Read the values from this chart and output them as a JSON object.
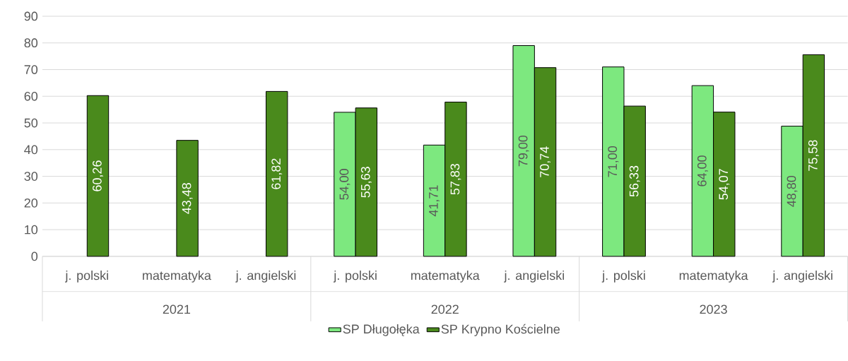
{
  "chart_data": {
    "type": "bar",
    "categories": [
      "j. polski",
      "matematyka",
      "j. angielski",
      "j. polski",
      "matematyka",
      "j. angielski",
      "j. polski",
      "matematyka",
      "j. angielski"
    ],
    "series": [
      {
        "name": "SP Długołęka",
        "color": "#7de87f",
        "values": [
          null,
          null,
          null,
          54.0,
          41.71,
          79.0,
          71.0,
          64.0,
          48.8
        ],
        "value_labels": [
          null,
          null,
          null,
          "54,00",
          "41,71",
          "79,00",
          "71,00",
          "64,00",
          "48,80"
        ]
      },
      {
        "name": "SP Krypno Kościelne",
        "color": "#4a8a1c",
        "values": [
          60.26,
          43.48,
          61.82,
          55.63,
          57.83,
          70.74,
          56.33,
          54.07,
          75.58
        ],
        "value_labels": [
          "60,26",
          "43,48",
          "61,82",
          "55,63",
          "57,83",
          "70,74",
          "56,33",
          "54,07",
          "75,58"
        ]
      }
    ],
    "annotations": [
      "2021",
      "2022",
      "2023"
    ],
    "ylim": [
      0,
      90
    ],
    "yticks": [
      0,
      10,
      20,
      30,
      40,
      50,
      60,
      70,
      80,
      90
    ],
    "grid": "y",
    "legend": "bottom"
  }
}
